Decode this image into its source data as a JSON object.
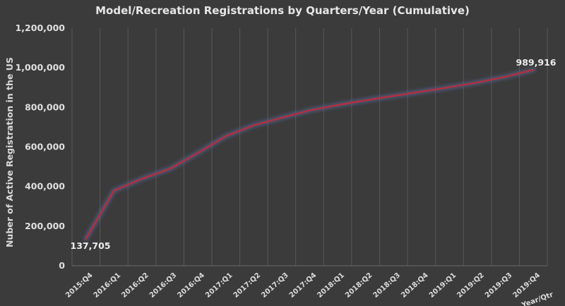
{
  "chart_data": {
    "type": "line",
    "title": "Model/Recreation Registrations by Quarters/Year (Cumulative)",
    "ylabel": "Nuber of Active Registration in the US",
    "xlabel": "Year/Qtr",
    "categories": [
      "2015:Q4",
      "2016:Q1",
      "2016:Q2",
      "2016:Q3",
      "2016:Q4",
      "2017:Q1",
      "2017:Q2",
      "2017:Q3",
      "2017:Q4",
      "2018:Q1",
      "2018:Q2",
      "2018:Q3",
      "2018:Q4",
      "2019:Q1",
      "2019:Q2",
      "2019:Q3",
      "2019:Q4"
    ],
    "series": [
      {
        "values": [
          137705,
          380000,
          440000,
          490000,
          570000,
          655000,
          710000,
          748000,
          785000,
          812000,
          836000,
          858000,
          880000,
          902000,
          926000,
          955000,
          989916
        ]
      }
    ],
    "ylim": [
      0,
      1200000
    ],
    "yticks": [
      0,
      200000,
      400000,
      600000,
      800000,
      1000000,
      1200000
    ],
    "ytick_labels": [
      "0",
      "200,000",
      "400,000",
      "600,000",
      "800,000",
      "1,000,000",
      "1,200,000"
    ],
    "annotations": {
      "first": "137,705",
      "last": "989,916"
    },
    "grid": "vertical",
    "line_color": "#b03040",
    "background_color": "#3b3b3b"
  }
}
